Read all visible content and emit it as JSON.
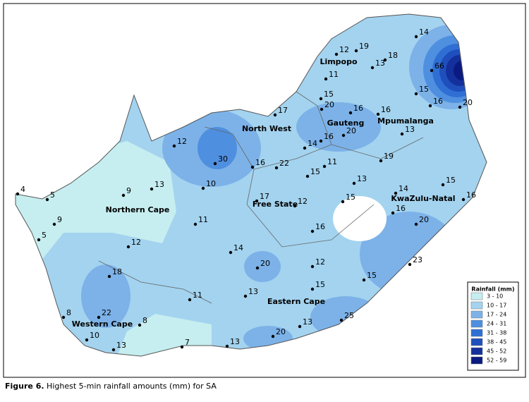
{
  "map": {
    "stations": [
      {
        "value": 14
      },
      {
        "value": 19
      },
      {
        "value": 12
      },
      {
        "value": 18
      },
      {
        "value": 13
      },
      {
        "value": 66
      },
      {
        "value": 11
      },
      {
        "value": 15
      },
      {
        "value": 15
      },
      {
        "value": 16
      },
      {
        "value": 20
      },
      {
        "value": 20
      },
      {
        "value": 16
      },
      {
        "value": 16
      },
      {
        "value": 17
      },
      {
        "value": 13
      },
      {
        "value": 16
      },
      {
        "value": 20
      },
      {
        "value": 14
      },
      {
        "value": 12
      },
      {
        "value": 30
      },
      {
        "value": 16
      },
      {
        "value": 22
      },
      {
        "value": 11
      },
      {
        "value": 15
      },
      {
        "value": 19
      },
      {
        "value": 13
      },
      {
        "value": 15
      },
      {
        "value": 16
      },
      {
        "value": 14
      },
      {
        "value": 10
      },
      {
        "value": 13
      },
      {
        "value": 9
      },
      {
        "value": 4
      },
      {
        "value": 5
      },
      {
        "value": 17
      },
      {
        "value": 12
      },
      {
        "value": 15
      },
      {
        "value": 16
      },
      {
        "value": 9
      },
      {
        "value": 11
      },
      {
        "value": 16
      },
      {
        "value": 20
      },
      {
        "value": 5
      },
      {
        "value": 12
      },
      {
        "value": 14
      },
      {
        "value": 20
      },
      {
        "value": 12
      },
      {
        "value": 23
      },
      {
        "value": 18
      },
      {
        "value": 15
      },
      {
        "value": 15
      },
      {
        "value": 13
      },
      {
        "value": 11
      },
      {
        "value": 8
      },
      {
        "value": 22
      },
      {
        "value": 8
      },
      {
        "value": 25
      },
      {
        "value": 13
      },
      {
        "value": 20
      },
      {
        "value": 10
      },
      {
        "value": 7
      },
      {
        "value": 13
      },
      {
        "value": 13
      }
    ],
    "provinces": [
      "Limpopo",
      "North West",
      "Gauteng",
      "Mpumalanga",
      "KwaZulu-Natal",
      "Free State",
      "Northern Cape",
      "Eastern Cape",
      "Western Cape"
    ],
    "legend": {
      "title": "Rainfall (mm)",
      "items": [
        {
          "label": "3 - 10",
          "color": "#c6eef0"
        },
        {
          "label": "10 - 17",
          "color": "#a3d3ef"
        },
        {
          "label": "17 - 24",
          "color": "#7cb2e8"
        },
        {
          "label": "24 - 31",
          "color": "#4f8fe0"
        },
        {
          "label": "31 - 38",
          "color": "#2f6fd4"
        },
        {
          "label": "38 - 45",
          "color": "#1f4fbc"
        },
        {
          "label": "45 - 52",
          "color": "#14309c"
        },
        {
          "label": "52 - 59",
          "color": "#0a1a80"
        }
      ]
    }
  },
  "caption": {
    "label": "Figure 6.",
    "text": "Highest 5-min rainfall amounts (mm) for SA"
  }
}
